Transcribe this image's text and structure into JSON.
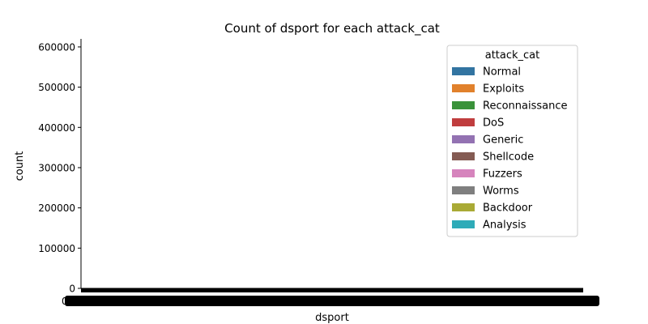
{
  "chart_data": {
    "type": "bar",
    "title": "Count of dsport for each attack_cat",
    "xlabel": "dsport",
    "ylabel": "count",
    "ylim": [
      0,
      620000
    ],
    "yticks": [
      0,
      100000,
      200000,
      300000,
      400000,
      500000,
      600000
    ],
    "ytick_labels": [
      "0",
      "100000",
      "200000",
      "300000",
      "400000",
      "500000",
      "600000"
    ],
    "grid": false,
    "legend": {
      "title": "attack_cat",
      "placement": "top-right",
      "entries": [
        {
          "name": "Normal",
          "color": "#3274a1"
        },
        {
          "name": "Exploits",
          "color": "#e1812c"
        },
        {
          "name": "Reconnaissance",
          "color": "#3a923a"
        },
        {
          "name": "DoS",
          "color": "#c03d3e"
        },
        {
          "name": "Generic",
          "color": "#9372b2"
        },
        {
          "name": "Shellcode",
          "color": "#845b53"
        },
        {
          "name": "Fuzzers",
          "color": "#d684bd"
        },
        {
          "name": "Worms",
          "color": "#7f7f7f"
        },
        {
          "name": "Backdoor",
          "color": "#a9aa35"
        },
        {
          "name": "Analysis",
          "color": "#2eabb8"
        }
      ]
    },
    "x_tick_label_glyph": "0"
  }
}
